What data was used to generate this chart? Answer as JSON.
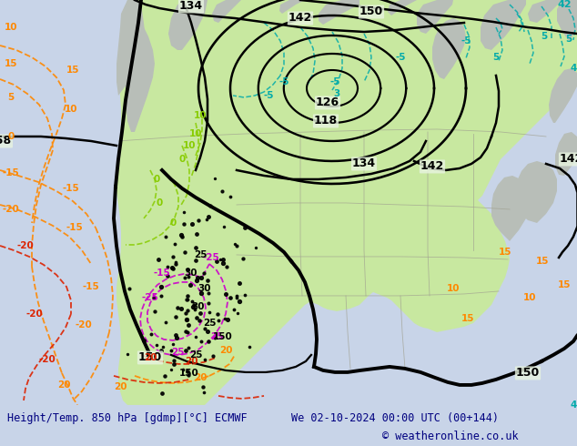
{
  "title_left": "Height/Temp. 850 hPa [gdmp][°C] ECMWF",
  "title_right": "We 02-10-2024 00:00 UTC (00+144)",
  "copyright": "© weatheronline.co.uk",
  "bg_color": "#f0f0f0",
  "land_green": "#c8e8a0",
  "footer_bg": "#c8d4e8",
  "ocean_color": "#e8e8e8",
  "terrain_color": "#b8beb8"
}
